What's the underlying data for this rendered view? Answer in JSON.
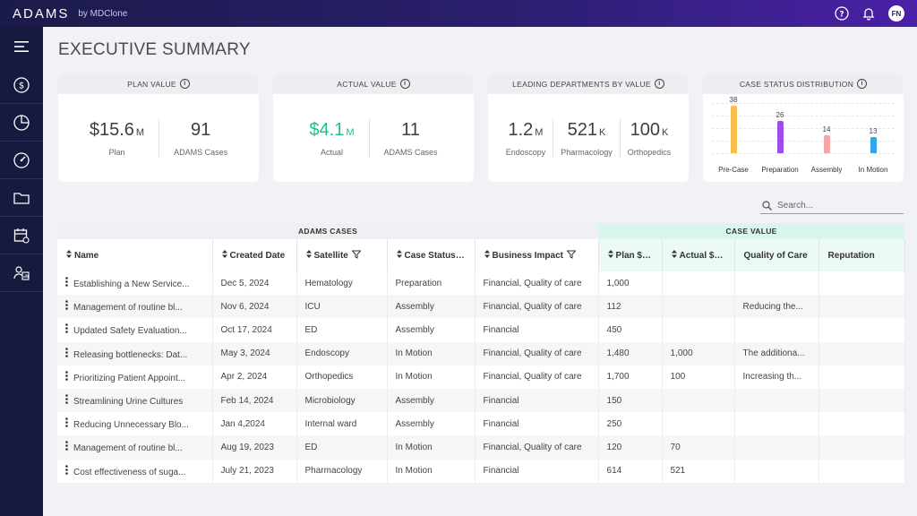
{
  "app": {
    "brand": "ADAMS",
    "brand_sub": "by MDClone",
    "user_initials": "FN"
  },
  "page": {
    "title": "EXECUTIVE SUMMARY"
  },
  "cards": {
    "plan": {
      "title": "PLAN VALUE",
      "value": "$15.6",
      "unit": "M",
      "value_label": "Plan",
      "count": "91",
      "count_label": "ADAMS Cases"
    },
    "actual": {
      "title": "ACTUAL VALUE",
      "value": "$4.1",
      "unit": "M",
      "value_label": "Actual",
      "count": "11",
      "count_label": "ADAMS Cases",
      "accent": "#1fbf93"
    },
    "departments": {
      "title": "LEADING DEPARTMENTS BY VALUE",
      "items": [
        {
          "value": "1.2",
          "unit": "M",
          "label": "Endoscopy"
        },
        {
          "value": "521",
          "unit": "K",
          "label": "Pharmacology"
        },
        {
          "value": "100",
          "unit": "K",
          "label": "Orthopedics"
        }
      ]
    },
    "status": {
      "title": "CASE STATUS DISTRIBUTION"
    }
  },
  "chart_data": {
    "type": "bar",
    "categories": [
      "Pre-Case",
      "Preparation",
      "Assembly",
      "In Motion"
    ],
    "values": [
      38,
      26,
      14,
      13
    ],
    "colors": [
      "#f7c04a",
      "#9d4de8",
      "#f4a5a5",
      "#2fa7ec"
    ],
    "ylim": [
      0,
      40
    ],
    "grid": true
  },
  "search": {
    "placeholder": "Search..."
  },
  "table": {
    "group_left": "ADAMS CASES",
    "group_right": "CASE VALUE",
    "columns": [
      "Name",
      "Created Date",
      "Satellite",
      "Case Status",
      "Business Impact",
      "Plan $(K)",
      "Actual $(K)",
      "Quality of Care",
      "Reputation"
    ],
    "rows": [
      [
        "Establishing a New Service...",
        "Dec 5, 2024",
        "Hematology",
        "Preparation",
        "Financial, Quality of care",
        "1,000",
        "",
        "",
        ""
      ],
      [
        "Management of routine bl...",
        "Nov 6, 2024",
        "ICU",
        "Assembly",
        "Financial, Quality of care",
        "112",
        "",
        "Reducing the...",
        ""
      ],
      [
        "Updated Safety Evaluation...",
        "Oct 17, 2024",
        "ED",
        "Assembly",
        "Financial",
        "450",
        "",
        "",
        ""
      ],
      [
        "Releasing bottlenecks: Dat...",
        "May 3, 2024",
        "Endoscopy",
        "In Motion",
        "Financial, Quality of care",
        "1,480",
        "1,000",
        "The additiona...",
        ""
      ],
      [
        "Prioritizing Patient Appoint...",
        "Apr 2, 2024",
        "Orthopedics",
        "In Motion",
        "Financial, Quality of care",
        "1,700",
        "100",
        "Increasing th...",
        ""
      ],
      [
        "Streamlining Urine Cultures",
        "Feb 14, 2024",
        "Microbiology",
        "Assembly",
        "Financial",
        "150",
        "",
        "",
        ""
      ],
      [
        "Reducing Unnecessary Blo...",
        "Jan 4,2024",
        "Internal ward",
        "Assembly",
        "Financial",
        "250",
        "",
        "",
        ""
      ],
      [
        "Management of routine bl...",
        "Aug 19, 2023",
        "ED",
        "In Motion",
        "Financial, Quality of care",
        "120",
        "70",
        "",
        ""
      ],
      [
        "Cost effectiveness of suga...",
        "July 21, 2023",
        "Pharmacology",
        "In Motion",
        "Financial",
        "614",
        "521",
        "",
        ""
      ]
    ]
  }
}
